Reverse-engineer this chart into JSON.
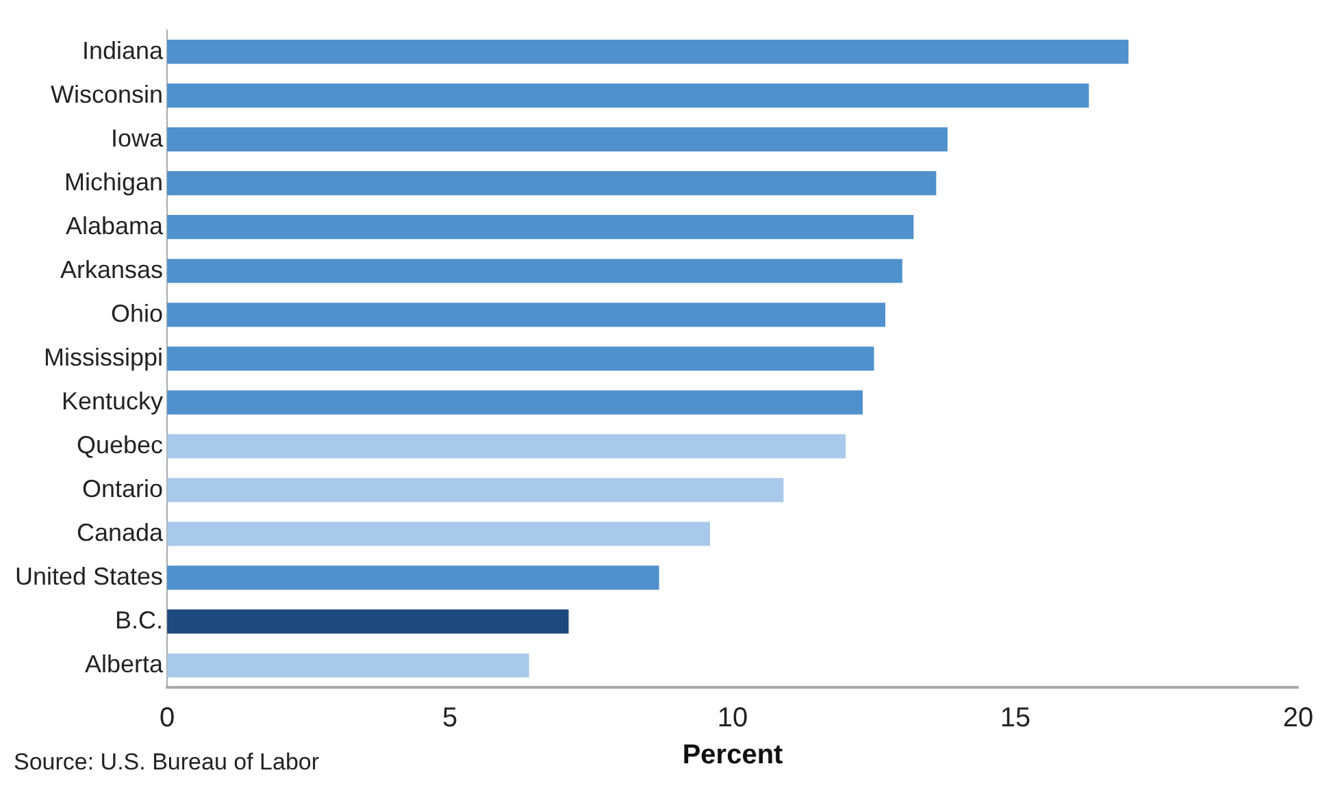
{
  "chart_data": {
    "type": "bar",
    "orientation": "horizontal",
    "categories": [
      "Indiana",
      "Wisconsin",
      "Iowa",
      "Michigan",
      "Alabama",
      "Arkansas",
      "Ohio",
      "Mississippi",
      "Kentucky",
      "Quebec",
      "Ontario",
      "Canada",
      "United States",
      "B.C.",
      "Alberta"
    ],
    "values": [
      17.0,
      16.3,
      13.8,
      13.6,
      13.2,
      13.0,
      12.7,
      12.5,
      12.3,
      12.0,
      10.9,
      9.6,
      8.7,
      7.1,
      6.4
    ],
    "colors": [
      "#5090cd",
      "#5090cd",
      "#5090cd",
      "#5090cd",
      "#5090cd",
      "#5090cd",
      "#5090cd",
      "#5090cd",
      "#5090cd",
      "#a9c9ea",
      "#a9c9ea",
      "#a9c9ea",
      "#5090cd",
      "#1f497d",
      "#a9c9ea"
    ],
    "xlim": [
      0,
      20
    ],
    "xticks": [
      0,
      5,
      10,
      15,
      20
    ],
    "xlabel": "Percent",
    "grid": false,
    "legend": false,
    "annotations": [
      "Source: U.S. Bureau of Labor"
    ]
  }
}
